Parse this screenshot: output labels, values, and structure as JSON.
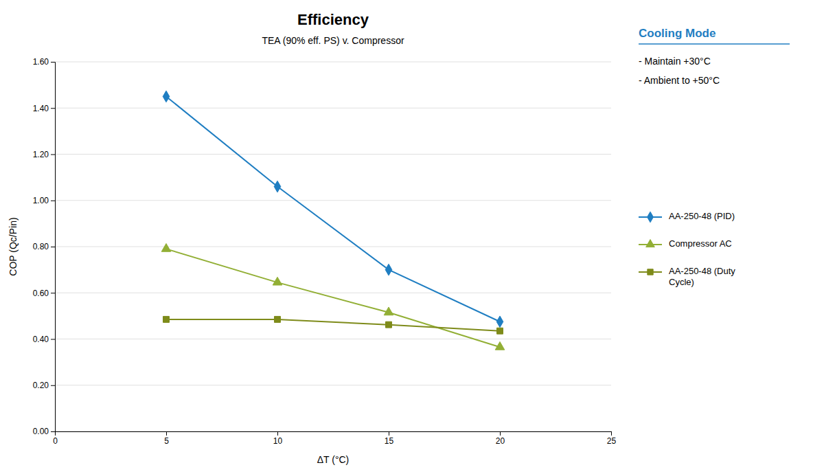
{
  "chart_data": {
    "type": "line",
    "title": "Efficiency",
    "subtitle": "TEA (90% eff. PS) v. Compressor",
    "xlabel": "ΔT (°C)",
    "ylabel": "COP (Qc/Pin)",
    "x": [
      5,
      10,
      15,
      20
    ],
    "series": [
      {
        "name": "AA-250-48 (PID)",
        "color": "#1F7EC2",
        "marker": "diamond",
        "values": [
          1.45,
          1.06,
          0.7,
          0.475
        ]
      },
      {
        "name": "Compressor AC",
        "color": "#92AF35",
        "marker": "triangle",
        "values": [
          0.79,
          0.645,
          0.515,
          0.365
        ]
      },
      {
        "name": "AA-250-48 (Duty\nCycle)",
        "color": "#7E8B1A",
        "marker": "square",
        "values": [
          0.485,
          0.485,
          0.462,
          0.435
        ]
      }
    ],
    "xlim": [
      0,
      25
    ],
    "ylim": [
      0.0,
      1.6
    ],
    "xticks": [
      0,
      5,
      10,
      15,
      20,
      25
    ],
    "yticks": [
      {
        "value": 0.0,
        "label": "0.00"
      },
      {
        "value": 0.2,
        "label": "0.20"
      },
      {
        "value": 0.4,
        "label": "0.40"
      },
      {
        "value": 0.6,
        "label": "0.60"
      },
      {
        "value": 0.8,
        "label": "0.80"
      },
      {
        "value": 1.0,
        "label": "1.00"
      },
      {
        "value": 1.2,
        "label": "1.20"
      },
      {
        "value": 1.4,
        "label": "1.40"
      },
      {
        "value": 1.6,
        "label": "1.60"
      }
    ],
    "grid": true,
    "legend": "right",
    "annotations": [
      "Cooling Mode",
      "- Maintain +30°C",
      "- Ambient to +50°C"
    ]
  }
}
